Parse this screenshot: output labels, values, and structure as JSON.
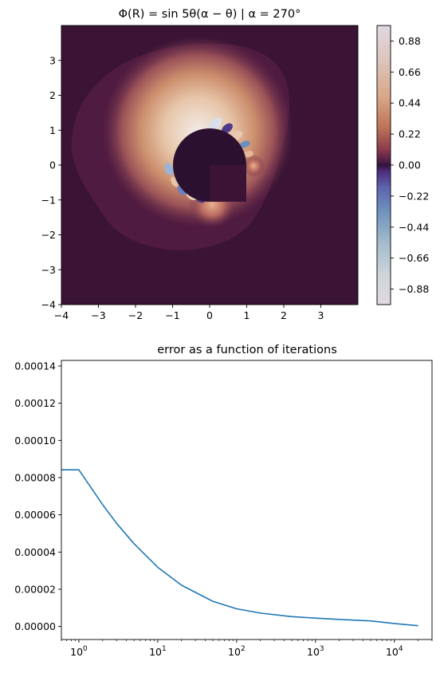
{
  "chart_data": [
    {
      "type": "heatmap",
      "title": "Φ(R) = sin 5θ(α − θ) | α = 270°",
      "xlabel": "",
      "ylabel": "",
      "xlim": [
        -4,
        4
      ],
      "ylim": [
        -4,
        4
      ],
      "xticks": [
        "−4",
        "−3",
        "−2",
        "−1",
        "0",
        "1",
        "2",
        "3"
      ],
      "yticks": [
        "3",
        "2",
        "1",
        "0",
        "−1",
        "−2",
        "−3",
        "−4"
      ],
      "xtick_values": [
        -4,
        -3,
        -2,
        -1,
        0,
        1,
        2,
        3
      ],
      "ytick_values": [
        3,
        2,
        1,
        0,
        -1,
        -2,
        -3,
        -4
      ],
      "colorbar": {
        "ticks": [
          "0.88",
          "0.66",
          "0.44",
          "0.22",
          "0.00",
          "−0.22",
          "−0.44",
          "−0.66",
          "−0.88"
        ],
        "tick_values": [
          0.88,
          0.66,
          0.44,
          0.22,
          0.0,
          -0.22,
          -0.44,
          -0.66,
          -0.88
        ],
        "range": [
          -0.99,
          0.99
        ],
        "colormap": "twilight"
      },
      "grid": false
    },
    {
      "type": "line",
      "title": "error as a function of iterations",
      "xlabel": "",
      "ylabel": "",
      "xscale": "log",
      "xlim": [
        0.6,
        30000
      ],
      "ylim": [
        -7e-06,
        0.000143
      ],
      "xticks": [
        {
          "base": "10",
          "exp": "0"
        },
        {
          "base": "10",
          "exp": "1"
        },
        {
          "base": "10",
          "exp": "2"
        },
        {
          "base": "10",
          "exp": "3"
        },
        {
          "base": "10",
          "exp": "4"
        }
      ],
      "xtick_values": [
        1,
        10,
        100,
        1000,
        10000
      ],
      "yticks": [
        "0.00014",
        "0.00012",
        "0.00010",
        "0.00008",
        "0.00006",
        "0.00004",
        "0.00002",
        "0.00000"
      ],
      "ytick_values": [
        0.00014,
        0.00012,
        0.0001,
        8e-05,
        6e-05,
        4e-05,
        2e-05,
        0.0
      ],
      "series": [
        {
          "color": "#1f77b4",
          "x": [
            0.6,
            1,
            2,
            3,
            5,
            10,
            20,
            50,
            100,
            200,
            500,
            1000,
            2000,
            5000,
            10000,
            20000
          ],
          "y": [
            8.42e-05,
            8.42e-05,
            6.55e-05,
            5.55e-05,
            4.45e-05,
            3.18e-05,
            2.22e-05,
            1.35e-05,
            9.5e-06,
            7.2e-06,
            5.3e-06,
            4.5e-06,
            3.8e-06,
            3e-06,
            1.6e-06,
            4e-07
          ]
        }
      ],
      "grid": false
    }
  ]
}
